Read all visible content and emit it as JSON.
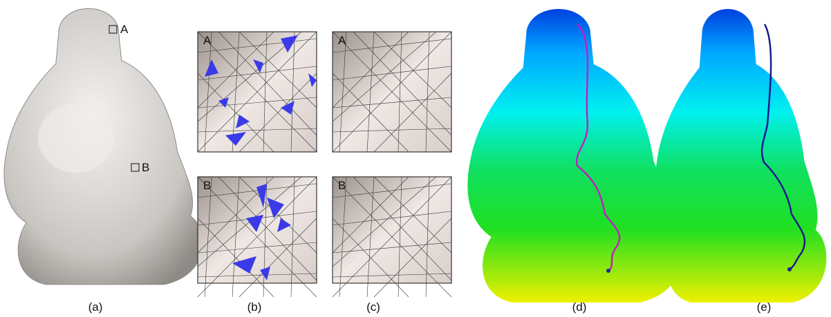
{
  "panels": [
    {
      "caption": "(a)",
      "markers": [
        "A",
        "B"
      ]
    },
    {
      "caption": "(b)",
      "insets": [
        "A",
        "B"
      ]
    },
    {
      "caption": "(c)",
      "insets": [
        "A",
        "B"
      ]
    },
    {
      "caption": "(d)"
    },
    {
      "caption": "(e)"
    }
  ]
}
